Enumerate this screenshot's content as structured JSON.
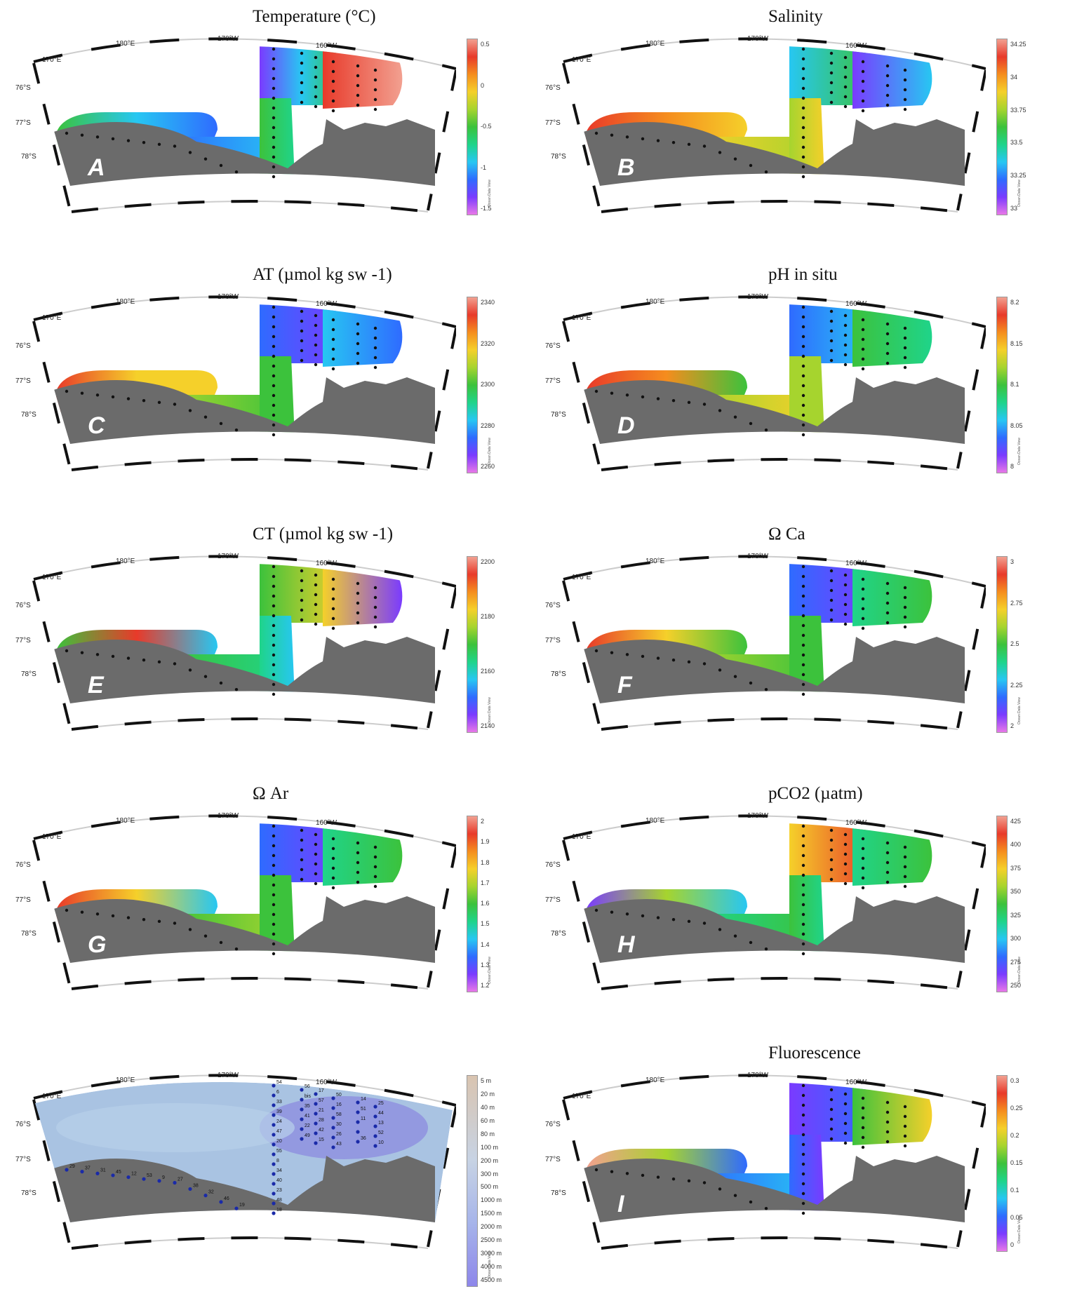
{
  "panels": [
    {
      "id": "A",
      "title": "Temperature (°C)",
      "ticks": [
        "0.5",
        "0",
        "-0.5",
        "-1",
        "-1.5"
      ]
    },
    {
      "id": "B",
      "title": "Salinity",
      "ticks": [
        "34.25",
        "34",
        "33.75",
        "33.5",
        "33.25",
        "33"
      ]
    },
    {
      "id": "C",
      "title": "AT (µmol kg sw -1)",
      "ticks": [
        "2340",
        "2320",
        "2300",
        "2280",
        "2260"
      ]
    },
    {
      "id": "D",
      "title": "pH in situ",
      "ticks": [
        "8.2",
        "8.15",
        "8.1",
        "8.05",
        "8"
      ]
    },
    {
      "id": "E",
      "title": "CT (µmol kg sw -1)",
      "ticks": [
        "2200",
        "2180",
        "2160",
        "2140"
      ]
    },
    {
      "id": "F",
      "title": "Ω Ca",
      "ticks": [
        "3",
        "2.75",
        "2.5",
        "2.25",
        "2"
      ]
    },
    {
      "id": "G",
      "title": "Ω Ar",
      "ticks": [
        "2",
        "1.9",
        "1.8",
        "1.7",
        "1.6",
        "1.5",
        "1.4",
        "1.3",
        "1.2"
      ]
    },
    {
      "id": "H",
      "title": "pCO2 (µatm)",
      "ticks": [
        "425",
        "400",
        "375",
        "350",
        "325",
        "300",
        "275",
        "250"
      ]
    },
    {
      "id": "bathy",
      "title": "",
      "ticks": [
        "5 m",
        "20 m",
        "40 m",
        "60 m",
        "80 m",
        "100 m",
        "200 m",
        "300 m",
        "500 m",
        "1000 m",
        "1500 m",
        "2000 m",
        "2500 m",
        "3000 m",
        "4000 m",
        "4500 m"
      ]
    },
    {
      "id": "I",
      "title": "Fluorescence",
      "ticks": [
        "0.3",
        "0.25",
        "0.2",
        "0.15",
        "0.1",
        "0.05",
        "0"
      ]
    }
  ],
  "axes": {
    "lon": [
      "170°E",
      "180°E",
      "170°W",
      "160°W"
    ],
    "lat": [
      "76°S",
      "77°S",
      "78°S"
    ]
  },
  "watermark": "Ocean Data View",
  "stations": [
    "29",
    "27",
    "33",
    "34",
    "35",
    "28",
    "26",
    "25",
    "31",
    "32",
    "24",
    "23",
    "22",
    "15",
    "14",
    "13",
    "12",
    "19",
    "20",
    "18",
    "17",
    "16",
    "11",
    "10",
    "9",
    "6",
    "8",
    "bis",
    "21",
    "30",
    "36",
    "37",
    "38",
    "39",
    "40",
    "41",
    "42",
    "43",
    "44",
    "45",
    "46",
    "47",
    "48",
    "49",
    "50",
    "51",
    "52",
    "53",
    "54",
    "55",
    "56",
    "57",
    "58"
  ],
  "colors": {
    "land": "#6b6b6b",
    "rainbow": [
      "#e878e8",
      "#7a3bff",
      "#2f6bff",
      "#27c7f2",
      "#1fd48a",
      "#3cc23c",
      "#a6d42e",
      "#f5d02a",
      "#f58d1e",
      "#e83a2a",
      "#f2a090"
    ]
  }
}
